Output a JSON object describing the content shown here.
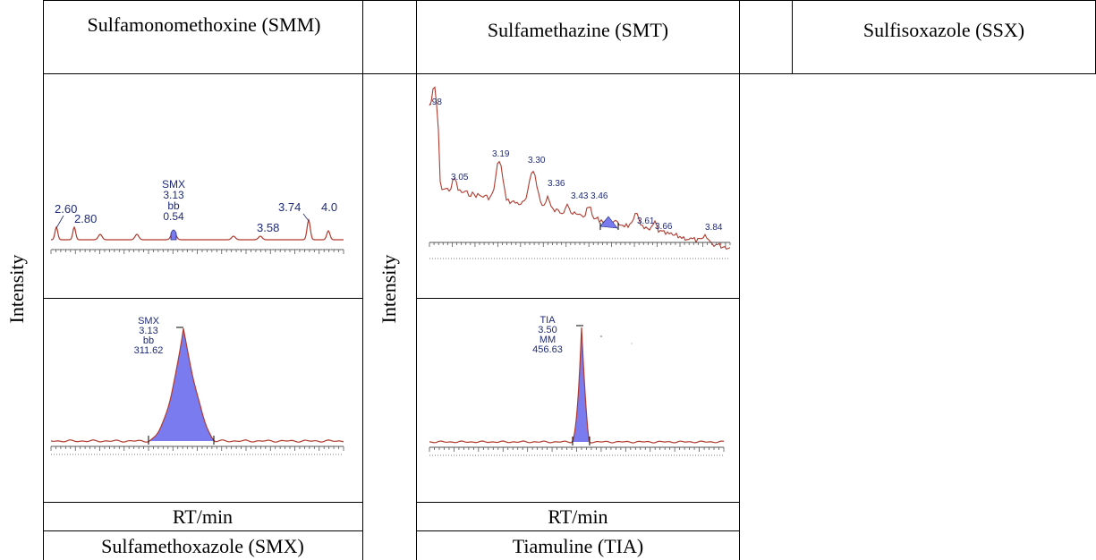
{
  "headers": {
    "smm": "Sulfamonomethoxine (SMM)",
    "smt": "Sulfamethazine (SMT)",
    "ssx": "Sulfisoxazole (SSX)"
  },
  "footers": {
    "rt_left": "RT/min",
    "rt_right": "RT/min",
    "smx": "Sulfamethoxazole (SMX)",
    "tia": "Tiamuline (TIA)"
  },
  "ylabels": {
    "left": "Intensity",
    "right": "Intensity"
  },
  "colors": {
    "trace": "#b03a2e",
    "peak_fill": "#7b7bf0",
    "annotation": "#1e2a78",
    "axis": "#555555"
  },
  "chart_data": [
    {
      "type": "line",
      "id": "smx-background",
      "title": "",
      "annotations": [
        {
          "rt": 2.6,
          "text": "2.60"
        },
        {
          "rt": 2.8,
          "text": "2.80"
        },
        {
          "rt": 3.13,
          "lines": [
            "SMX",
            "3.13",
            "bb",
            "0.54"
          ]
        },
        {
          "rt": 3.58,
          "text": "3.58"
        },
        {
          "rt": 3.74,
          "text": "3.74"
        },
        {
          "rt": 4.0,
          "text": "4.0"
        }
      ]
    },
    {
      "type": "line",
      "id": "smx-peak",
      "title": "",
      "annotations": [
        {
          "rt": 3.13,
          "lines": [
            "SMX",
            "3.13",
            "bb",
            "311.62"
          ]
        }
      ]
    },
    {
      "type": "line",
      "id": "tia-background",
      "title": "",
      "annotations": [
        {
          "rt": 2.98,
          "text": ".98"
        },
        {
          "rt": 3.05,
          "text": "3.05"
        },
        {
          "rt": 3.19,
          "text": "3.19"
        },
        {
          "rt": 3.3,
          "text": "3.30"
        },
        {
          "rt": 3.36,
          "text": "3.36"
        },
        {
          "rt": 3.43,
          "text": "3.43"
        },
        {
          "rt": 3.46,
          "text": "3.46"
        },
        {
          "rt": 3.61,
          "text": "3.61"
        },
        {
          "rt": 3.66,
          "text": "3.66"
        },
        {
          "rt": 3.84,
          "text": "3.84"
        }
      ]
    },
    {
      "type": "line",
      "id": "tia-peak",
      "title": "",
      "annotations": [
        {
          "rt": 3.5,
          "lines": [
            "TIA",
            "3.50",
            "MM",
            "456.63"
          ]
        }
      ]
    }
  ]
}
